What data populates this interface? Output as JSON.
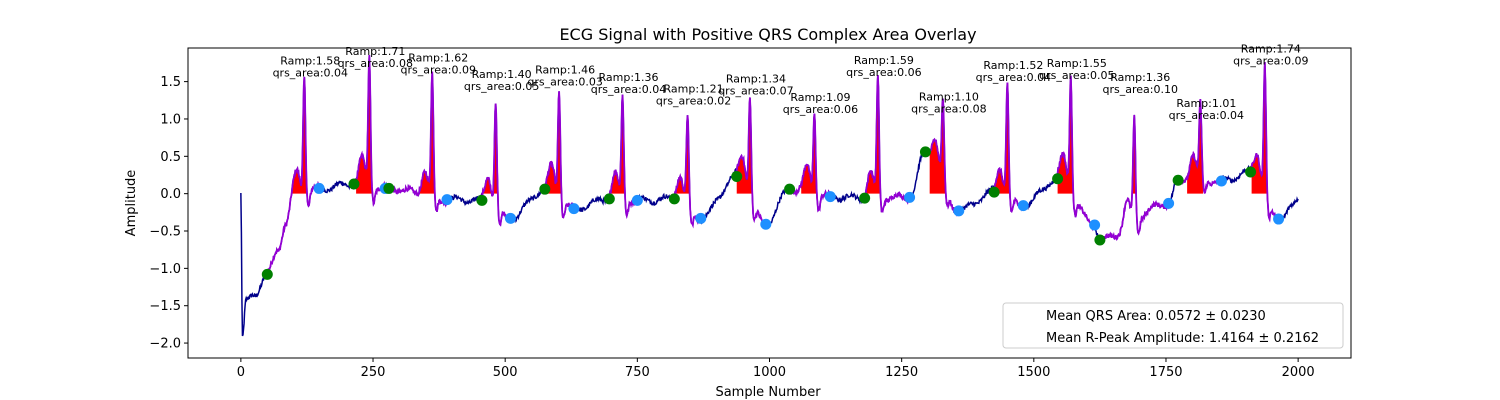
{
  "chart_data": {
    "type": "line",
    "title": "ECG Signal with Positive QRS Complex Area Overlay",
    "xlabel": "Sample Number",
    "ylabel": "Amplitude",
    "xlim": [
      -100,
      2100
    ],
    "ylim": [
      -2.2,
      1.95
    ],
    "xticks": [
      0,
      250,
      500,
      750,
      1000,
      1250,
      1500,
      1750,
      2000
    ],
    "yticks": [
      -2.0,
      -1.5,
      -1.0,
      -0.5,
      0.0,
      0.5,
      1.0,
      1.5
    ],
    "grid": false,
    "colors": {
      "signal": "#00008b",
      "qrs_segments": "#9400d3",
      "qrs_area": "#ff0000",
      "onset_markers": "#008000",
      "offset_markers": "#1e90ff"
    },
    "beats": [
      {
        "r_x": 120,
        "r_amp": 1.58,
        "qrs_area": 0.04,
        "onset": [
          50,
          -1.08
        ],
        "offset": [
          148,
          0.07
        ]
      },
      {
        "r_x": 243,
        "r_amp": 1.71,
        "qrs_area": 0.08,
        "onset": [
          214,
          0.13
        ],
        "offset": [
          273,
          0.07
        ]
      },
      {
        "r_x": 362,
        "r_amp": 1.62,
        "qrs_area": 0.09,
        "onset": [
          280,
          0.07
        ],
        "offset": [
          390,
          -0.08
        ]
      },
      {
        "r_x": 482,
        "r_amp": 1.4,
        "qrs_area": 0.05,
        "onset": [
          456,
          -0.09
        ],
        "offset": [
          510,
          -0.33
        ]
      },
      {
        "r_x": 602,
        "r_amp": 1.46,
        "qrs_area": 0.03,
        "onset": [
          575,
          0.06
        ],
        "offset": [
          630,
          -0.2
        ]
      },
      {
        "r_x": 722,
        "r_amp": 1.36,
        "qrs_area": 0.04,
        "onset": [
          697,
          -0.07
        ],
        "offset": [
          750,
          -0.09
        ]
      },
      {
        "r_x": 845,
        "r_amp": 1.21,
        "qrs_area": 0.02,
        "onset": [
          820,
          -0.07
        ],
        "offset": [
          870,
          -0.33
        ]
      },
      {
        "r_x": 963,
        "r_amp": 1.34,
        "qrs_area": 0.07,
        "onset": [
          938,
          0.23
        ],
        "offset": [
          993,
          -0.41
        ]
      },
      {
        "r_x": 1085,
        "r_amp": 1.09,
        "qrs_area": 0.06,
        "onset": [
          1038,
          0.06
        ],
        "offset": [
          1115,
          -0.04
        ]
      },
      {
        "r_x": 1205,
        "r_amp": 1.59,
        "qrs_area": 0.06,
        "onset": [
          1180,
          -0.06
        ],
        "offset": [
          1265,
          -0.05
        ]
      },
      {
        "r_x": 1328,
        "r_amp": 1.1,
        "qrs_area": 0.08,
        "onset": [
          1295,
          0.56
        ],
        "offset": [
          1358,
          -0.23
        ]
      },
      {
        "r_x": 1450,
        "r_amp": 1.52,
        "qrs_area": 0.04,
        "onset": [
          1425,
          0.02
        ],
        "offset": [
          1480,
          -0.16
        ]
      },
      {
        "r_x": 1570,
        "r_amp": 1.55,
        "qrs_area": 0.05,
        "onset": [
          1545,
          0.2
        ],
        "offset": [
          1615,
          -0.42
        ]
      },
      {
        "r_x": 1690,
        "r_amp": 1.36,
        "qrs_area": 0.1,
        "onset": [
          1625,
          -0.62
        ],
        "offset": [
          1755,
          -0.13
        ]
      },
      {
        "r_x": 1815,
        "r_amp": 1.01,
        "qrs_area": 0.04,
        "onset": [
          1773,
          0.18
        ],
        "offset": [
          1855,
          0.17
        ]
      },
      {
        "r_x": 1937,
        "r_amp": 1.74,
        "qrs_area": 0.09,
        "onset": [
          1910,
          0.29
        ],
        "offset": [
          1963,
          -0.34
        ]
      }
    ],
    "legend": {
      "position": "bottom-right",
      "entries": [
        "Mean QRS Area: 0.0572 ± 0.0230",
        "Mean R-Peak Amplitude: 1.4164 ± 0.2162"
      ]
    }
  }
}
